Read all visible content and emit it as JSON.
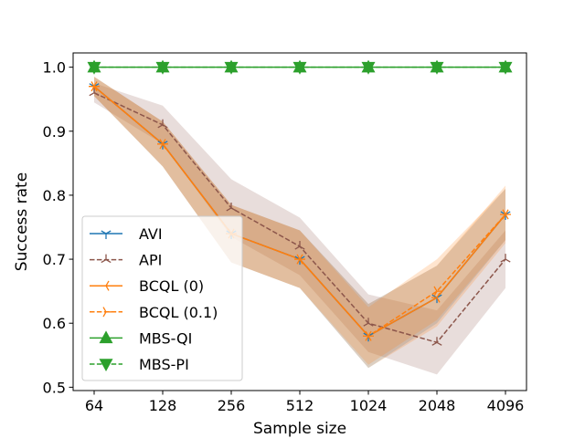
{
  "chart_data": {
    "type": "line",
    "title": "",
    "xlabel": "Sample size",
    "ylabel": "Success rate",
    "categories": [
      "64",
      "128",
      "256",
      "512",
      "1024",
      "2048",
      "4096"
    ],
    "ylim": [
      0.5,
      1.0
    ],
    "yticks": [
      "0.5",
      "0.6",
      "0.7",
      "0.8",
      "0.9",
      "1.0"
    ],
    "grid": false,
    "legend_position": "lower-left",
    "series": [
      {
        "name": "AVI",
        "color": "#1f77b4",
        "linestyle": "solid",
        "marker": "tri-down",
        "values": [
          0.97,
          0.88,
          0.74,
          0.7,
          0.58,
          0.64,
          0.77
        ],
        "lower": [
          0.955,
          0.845,
          0.695,
          0.655,
          0.53,
          0.6,
          0.73
        ],
        "upper": [
          0.985,
          0.915,
          0.785,
          0.745,
          0.63,
          0.69,
          0.81
        ]
      },
      {
        "name": "API",
        "color": "#8c564b",
        "linestyle": "dashed",
        "marker": "tri-up",
        "values": [
          0.96,
          0.91,
          0.78,
          0.72,
          0.6,
          0.57,
          0.7
        ],
        "lower": [
          0.945,
          0.88,
          0.735,
          0.675,
          0.555,
          0.52,
          0.655
        ],
        "upper": [
          0.975,
          0.94,
          0.825,
          0.765,
          0.645,
          0.62,
          0.745
        ]
      },
      {
        "name": "BCQL (0)",
        "color": "#ff7f0e",
        "linestyle": "solid",
        "marker": "tri-left",
        "values": [
          0.97,
          0.88,
          0.74,
          0.7,
          0.58,
          0.64,
          0.77
        ],
        "lower": [
          0.955,
          0.845,
          0.695,
          0.655,
          0.53,
          0.595,
          0.725
        ],
        "upper": [
          0.985,
          0.915,
          0.785,
          0.745,
          0.63,
          0.69,
          0.815
        ]
      },
      {
        "name": "BCQL (0.1)",
        "color": "#ff7f0e",
        "linestyle": "dashed",
        "marker": "tri-right",
        "values": [
          0.97,
          0.88,
          0.74,
          0.7,
          0.58,
          0.65,
          0.77
        ],
        "lower": [
          0.955,
          0.845,
          0.695,
          0.655,
          0.535,
          0.605,
          0.73
        ],
        "upper": [
          0.985,
          0.915,
          0.785,
          0.745,
          0.625,
          0.7,
          0.81
        ]
      },
      {
        "name": "MBS-QI",
        "color": "#2ca02c",
        "linestyle": "solid",
        "marker": "triangle-up",
        "values": [
          1.0,
          1.0,
          1.0,
          1.0,
          1.0,
          1.0,
          1.0
        ]
      },
      {
        "name": "MBS-PI",
        "color": "#2ca02c",
        "linestyle": "dashed",
        "marker": "triangle-down",
        "values": [
          1.0,
          1.0,
          1.0,
          1.0,
          1.0,
          1.0,
          1.0
        ]
      }
    ]
  }
}
